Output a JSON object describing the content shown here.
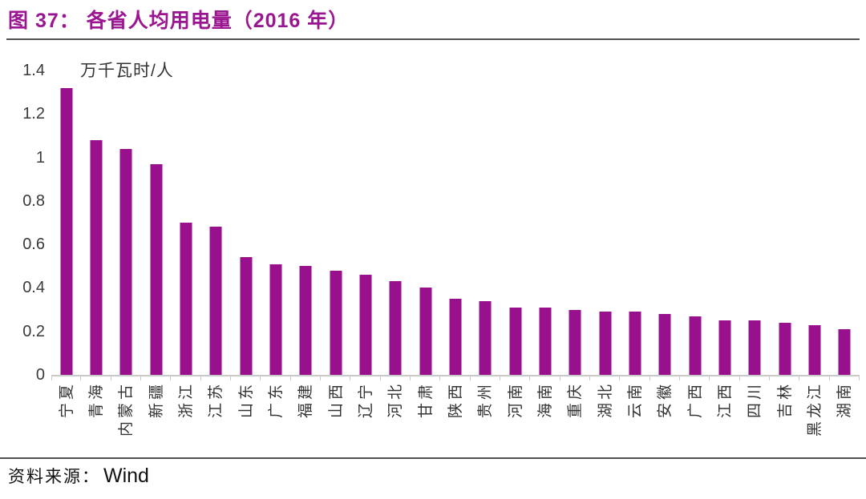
{
  "title": "图 37：  各省人均用电量（2016 年）",
  "colors": {
    "title": "#9A1691",
    "bar": "#98108C",
    "divider": "#515151",
    "axis_line": "#c9c9c9"
  },
  "source": {
    "prefix": "资料来源：",
    "name": "Wind"
  },
  "chart_data": {
    "type": "bar",
    "title": "各省人均用电量（2016 年）",
    "unit_label": "万千瓦时/人",
    "xlabel": "",
    "ylabel": "万千瓦时/人",
    "ylim": [
      0,
      1.4
    ],
    "yticks": [
      1.4,
      1.2,
      1,
      0.8,
      0.6,
      0.4,
      0.2,
      0
    ],
    "grid": false,
    "legend_position": "none",
    "bar_color": "#98108C",
    "categories": [
      "宁夏",
      "青海",
      "内蒙古",
      "新疆",
      "浙江",
      "江苏",
      "山东",
      "广东",
      "福建",
      "山西",
      "辽宁",
      "河北",
      "甘肃",
      "陕西",
      "贵州",
      "河南",
      "海南",
      "重庆",
      "湖北",
      "云南",
      "安徽",
      "广西",
      "江西",
      "四川",
      "吉林",
      "黑龙江",
      "湖南"
    ],
    "values": [
      1.32,
      1.08,
      1.04,
      0.97,
      0.7,
      0.68,
      0.54,
      0.51,
      0.5,
      0.48,
      0.46,
      0.43,
      0.4,
      0.35,
      0.34,
      0.31,
      0.31,
      0.3,
      0.29,
      0.29,
      0.28,
      0.27,
      0.25,
      0.25,
      0.24,
      0.23,
      0.21
    ]
  }
}
